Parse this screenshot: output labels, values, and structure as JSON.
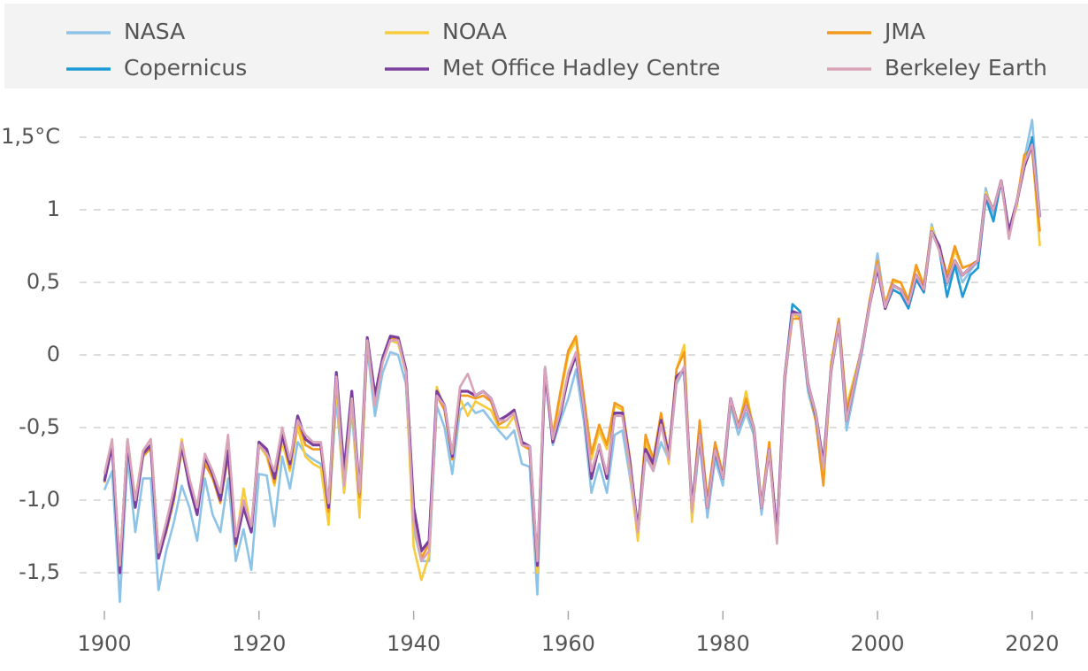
{
  "chart_data": {
    "type": "line",
    "x": [
      1900,
      1901,
      1902,
      1903,
      1904,
      1905,
      1906,
      1907,
      1908,
      1909,
      1910,
      1911,
      1912,
      1913,
      1914,
      1915,
      1916,
      1917,
      1918,
      1919,
      1920,
      1921,
      1922,
      1923,
      1924,
      1925,
      1926,
      1927,
      1928,
      1929,
      1930,
      1931,
      1932,
      1933,
      1934,
      1935,
      1936,
      1937,
      1938,
      1939,
      1940,
      1941,
      1942,
      1943,
      1944,
      1945,
      1946,
      1947,
      1948,
      1949,
      1950,
      1951,
      1952,
      1953,
      1954,
      1955,
      1956,
      1957,
      1958,
      1959,
      1960,
      1961,
      1962,
      1963,
      1964,
      1965,
      1966,
      1967,
      1968,
      1969,
      1970,
      1971,
      1972,
      1973,
      1974,
      1975,
      1976,
      1977,
      1978,
      1979,
      1980,
      1981,
      1982,
      1983,
      1984,
      1985,
      1986,
      1987,
      1988,
      1989,
      1990,
      1991,
      1992,
      1993,
      1994,
      1995,
      1996,
      1997,
      1998,
      1999,
      2000,
      2001,
      2002,
      2003,
      2004,
      2005,
      2006,
      2007,
      2008,
      2009,
      2010,
      2011,
      2012,
      2013,
      2014,
      2015,
      2016,
      2017,
      2018,
      2019,
      2020,
      2021
    ],
    "series": [
      {
        "name": "NASA",
        "color": "#8ec3e8",
        "values": [
          -0.93,
          -0.8,
          -1.7,
          -0.7,
          -1.22,
          -0.85,
          -0.85,
          -1.62,
          -1.35,
          -1.15,
          -0.9,
          -1.05,
          -1.28,
          -0.85,
          -1.1,
          -1.22,
          -0.85,
          -1.42,
          -1.2,
          -1.48,
          -0.82,
          -0.83,
          -1.18,
          -0.7,
          -0.92,
          -0.6,
          -0.68,
          -0.72,
          -0.75,
          -1.15,
          -0.3,
          -0.95,
          -0.38,
          -1.08,
          0.05,
          -0.42,
          -0.12,
          0.02,
          0.0,
          -0.2,
          -1.2,
          -1.42,
          -1.42,
          -0.35,
          -0.5,
          -0.82,
          -0.38,
          -0.33,
          -0.4,
          -0.38,
          -0.45,
          -0.52,
          -0.58,
          -0.52,
          -0.75,
          -0.77,
          -1.65,
          -0.12,
          -0.62,
          -0.45,
          -0.3,
          -0.1,
          -0.45,
          -0.95,
          -0.75,
          -0.95,
          -0.55,
          -0.52,
          -0.85,
          -1.25,
          -0.7,
          -0.8,
          -0.6,
          -0.72,
          -0.2,
          -0.1,
          -1.12,
          -0.6,
          -1.12,
          -0.72,
          -0.9,
          -0.35,
          -0.55,
          -0.4,
          -0.55,
          -1.1,
          -0.62,
          -1.28,
          -0.2,
          0.3,
          0.25,
          -0.25,
          -0.45,
          -0.85,
          -0.12,
          0.2,
          -0.52,
          -0.25,
          0.02,
          0.35,
          0.7,
          0.33,
          0.45,
          0.42,
          0.33,
          0.55,
          0.45,
          0.9,
          0.72,
          0.48,
          0.65,
          0.5,
          0.58,
          0.65,
          1.15,
          0.95,
          1.2,
          0.85,
          1.05,
          1.35,
          1.62,
          0.95
        ]
      },
      {
        "name": "NOAA",
        "color": "#f6cb3c",
        "values": [
          -0.85,
          -0.6,
          -1.45,
          -0.58,
          -1.0,
          -0.66,
          -0.58,
          -1.35,
          -1.18,
          -0.95,
          -0.58,
          -0.88,
          -1.05,
          -0.72,
          -0.8,
          -0.98,
          -0.62,
          -1.28,
          -0.92,
          -1.2,
          -0.62,
          -0.7,
          -0.9,
          -0.6,
          -0.8,
          -0.5,
          -0.7,
          -0.75,
          -0.78,
          -1.17,
          -0.2,
          -0.95,
          -0.3,
          -1.12,
          0.08,
          -0.32,
          -0.05,
          0.1,
          0.08,
          -0.12,
          -1.32,
          -1.55,
          -1.38,
          -0.22,
          -0.38,
          -0.72,
          -0.3,
          -0.42,
          -0.32,
          -0.35,
          -0.38,
          -0.5,
          -0.5,
          -0.42,
          -0.62,
          -0.65,
          -1.5,
          -0.1,
          -0.58,
          -0.28,
          0.0,
          0.1,
          -0.3,
          -0.72,
          -0.52,
          -0.65,
          -0.35,
          -0.38,
          -0.8,
          -1.28,
          -0.6,
          -0.78,
          -0.42,
          -0.75,
          -0.1,
          0.07,
          -1.15,
          -0.48,
          -1.0,
          -0.62,
          -0.85,
          -0.32,
          -0.5,
          -0.25,
          -0.52,
          -1.02,
          -0.6,
          -1.25,
          -0.18,
          0.28,
          0.25,
          -0.18,
          -0.45,
          -0.88,
          -0.05,
          0.25,
          -0.35,
          -0.15,
          0.05,
          0.35,
          0.65,
          0.33,
          0.5,
          0.5,
          0.38,
          0.6,
          0.48,
          0.88,
          0.72,
          0.52,
          0.72,
          0.6,
          0.62,
          0.65,
          1.12,
          1.0,
          1.18,
          0.85,
          1.02,
          1.35,
          1.42,
          0.75
        ]
      },
      {
        "name": "JMA",
        "color": "#f39a1e",
        "values": [
          -0.88,
          -0.63,
          -1.48,
          -0.62,
          -1.02,
          -0.7,
          -0.64,
          -1.38,
          -1.22,
          -1.0,
          -0.65,
          -0.9,
          -1.08,
          -0.75,
          -0.85,
          -1.02,
          -0.7,
          -1.32,
          -1.02,
          -1.2,
          -0.62,
          -0.68,
          -0.88,
          -0.55,
          -0.78,
          -0.45,
          -0.62,
          -0.65,
          -0.65,
          -1.08,
          -0.15,
          -0.85,
          -0.28,
          -0.98,
          0.1,
          -0.3,
          -0.03,
          0.12,
          0.1,
          -0.12,
          -1.1,
          -1.4,
          -1.3,
          -0.28,
          -0.38,
          -0.72,
          -0.28,
          -0.28,
          -0.3,
          -0.28,
          -0.32,
          -0.48,
          -0.45,
          -0.4,
          -0.62,
          -0.65,
          -1.45,
          -0.1,
          -0.55,
          -0.25,
          0.03,
          0.13,
          -0.28,
          -0.68,
          -0.48,
          -0.62,
          -0.33,
          -0.36,
          -0.72,
          -1.22,
          -0.55,
          -0.72,
          -0.4,
          -0.68,
          -0.1,
          0.02,
          -1.08,
          -0.45,
          -1.0,
          -0.6,
          -0.82,
          -0.3,
          -0.48,
          -0.3,
          -0.5,
          -1.05,
          -0.6,
          -1.25,
          -0.15,
          0.25,
          0.25,
          -0.2,
          -0.45,
          -0.9,
          -0.08,
          0.25,
          -0.38,
          -0.18,
          0.05,
          0.38,
          0.65,
          0.35,
          0.52,
          0.5,
          0.38,
          0.62,
          0.48,
          0.85,
          0.75,
          0.55,
          0.75,
          0.6,
          0.62,
          0.65,
          1.1,
          1.0,
          1.2,
          0.85,
          1.05,
          1.38,
          1.42,
          0.85
        ]
      },
      {
        "name": "Copernicus",
        "color": "#1c9ad6",
        "values": [
          null,
          null,
          null,
          null,
          null,
          null,
          null,
          null,
          null,
          null,
          null,
          null,
          null,
          null,
          null,
          null,
          null,
          null,
          null,
          null,
          null,
          null,
          null,
          null,
          null,
          null,
          null,
          null,
          null,
          null,
          null,
          null,
          null,
          null,
          null,
          null,
          null,
          null,
          null,
          null,
          null,
          null,
          null,
          null,
          null,
          null,
          null,
          null,
          null,
          null,
          null,
          null,
          null,
          null,
          null,
          null,
          null,
          null,
          null,
          null,
          null,
          null,
          null,
          null,
          null,
          null,
          null,
          null,
          null,
          null,
          null,
          null,
          null,
          null,
          null,
          null,
          null,
          null,
          null,
          -0.68,
          -0.85,
          -0.3,
          -0.5,
          -0.35,
          -0.5,
          -1.05,
          -0.65,
          -1.25,
          -0.15,
          0.35,
          0.3,
          -0.2,
          -0.42,
          -0.78,
          -0.1,
          0.22,
          -0.45,
          -0.2,
          0.05,
          0.35,
          0.62,
          0.32,
          0.45,
          0.42,
          0.32,
          0.52,
          0.43,
          0.85,
          0.72,
          0.4,
          0.62,
          0.4,
          0.55,
          0.6,
          1.08,
          0.92,
          1.2,
          0.82,
          1.05,
          1.3,
          1.5,
          0.95
        ]
      },
      {
        "name": "Met Office Hadley Centre",
        "color": "#7b3f9e",
        "values": [
          -0.87,
          -0.62,
          -1.5,
          -0.6,
          -1.05,
          -0.68,
          -0.62,
          -1.4,
          -1.2,
          -0.97,
          -0.62,
          -0.9,
          -1.1,
          -0.7,
          -0.82,
          -1.0,
          -0.66,
          -1.3,
          -1.05,
          -1.22,
          -0.6,
          -0.65,
          -0.85,
          -0.55,
          -0.75,
          -0.42,
          -0.58,
          -0.62,
          -0.62,
          -1.05,
          -0.12,
          -0.8,
          -0.25,
          -0.95,
          0.12,
          -0.28,
          -0.02,
          0.13,
          0.12,
          -0.1,
          -1.05,
          -1.35,
          -1.28,
          -0.25,
          -0.35,
          -0.7,
          -0.25,
          -0.25,
          -0.28,
          -0.25,
          -0.3,
          -0.45,
          -0.42,
          -0.38,
          -0.6,
          -0.63,
          -1.45,
          -0.1,
          -0.6,
          -0.4,
          -0.15,
          0.0,
          -0.35,
          -0.85,
          -0.62,
          -0.85,
          -0.4,
          -0.4,
          -0.75,
          -1.2,
          -0.65,
          -0.75,
          -0.45,
          -0.7,
          -0.15,
          -0.1,
          -1.05,
          -0.55,
          -1.05,
          -0.65,
          -0.85,
          -0.3,
          -0.5,
          -0.35,
          -0.5,
          -1.05,
          -0.65,
          -1.25,
          -0.15,
          0.3,
          0.28,
          -0.2,
          -0.4,
          -0.75,
          -0.1,
          0.22,
          -0.45,
          -0.2,
          0.05,
          0.35,
          0.6,
          0.32,
          0.48,
          0.45,
          0.35,
          0.55,
          0.45,
          0.85,
          0.75,
          0.5,
          0.65,
          0.55,
          0.6,
          0.65,
          1.1,
          1.0,
          1.2,
          0.85,
          1.05,
          1.3,
          1.45,
          0.95
        ]
      },
      {
        "name": "Berkeley Earth",
        "color": "#d9a3b8",
        "values": [
          -0.82,
          -0.58,
          -1.45,
          -0.58,
          -1.0,
          -0.66,
          -0.58,
          -1.36,
          -1.15,
          -0.92,
          -0.6,
          -0.85,
          -1.05,
          -0.68,
          -0.8,
          -0.95,
          -0.55,
          -1.25,
          -1.0,
          -1.18,
          -0.62,
          -0.68,
          -0.8,
          -0.5,
          -0.72,
          -0.45,
          -0.55,
          -0.6,
          -0.6,
          -1.02,
          -0.15,
          -0.9,
          -0.3,
          -0.95,
          0.1,
          -0.35,
          -0.05,
          0.1,
          0.1,
          -0.12,
          -1.15,
          -1.42,
          -1.35,
          -0.28,
          -0.35,
          -0.68,
          -0.22,
          -0.13,
          -0.28,
          -0.25,
          -0.3,
          -0.45,
          -0.45,
          -0.4,
          -0.62,
          -0.63,
          -1.42,
          -0.08,
          -0.58,
          -0.38,
          -0.12,
          0.02,
          -0.35,
          -0.8,
          -0.62,
          -0.82,
          -0.42,
          -0.42,
          -0.78,
          -1.22,
          -0.68,
          -0.8,
          -0.48,
          -0.72,
          -0.18,
          -0.08,
          -1.08,
          -0.55,
          -1.05,
          -0.65,
          -0.85,
          -0.3,
          -0.5,
          -0.35,
          -0.5,
          -1.05,
          -0.65,
          -1.3,
          -0.15,
          0.28,
          0.28,
          -0.2,
          -0.4,
          -0.78,
          -0.1,
          0.22,
          -0.45,
          -0.2,
          0.05,
          0.35,
          0.62,
          0.33,
          0.48,
          0.45,
          0.35,
          0.55,
          0.45,
          0.85,
          0.72,
          0.5,
          0.65,
          0.55,
          0.6,
          0.65,
          1.1,
          1.0,
          1.2,
          0.8,
          1.05,
          1.32,
          1.45,
          0.95
        ]
      }
    ],
    "xlim": [
      1897,
      2027
    ],
    "ylim": [
      -1.75,
      1.75
    ],
    "xticks": [
      1900,
      1920,
      1940,
      1960,
      1980,
      2000,
      2020
    ],
    "yticks": [
      {
        "value": -1.5,
        "label": "-1,5"
      },
      {
        "value": -1.0,
        "label": "-1,0"
      },
      {
        "value": -0.5,
        "label": "-0,5"
      },
      0,
      {
        "value": 0.5,
        "label": "0,5"
      },
      1,
      {
        "value": 1.5,
        "label": "1,5°C"
      }
    ],
    "grid": true
  }
}
